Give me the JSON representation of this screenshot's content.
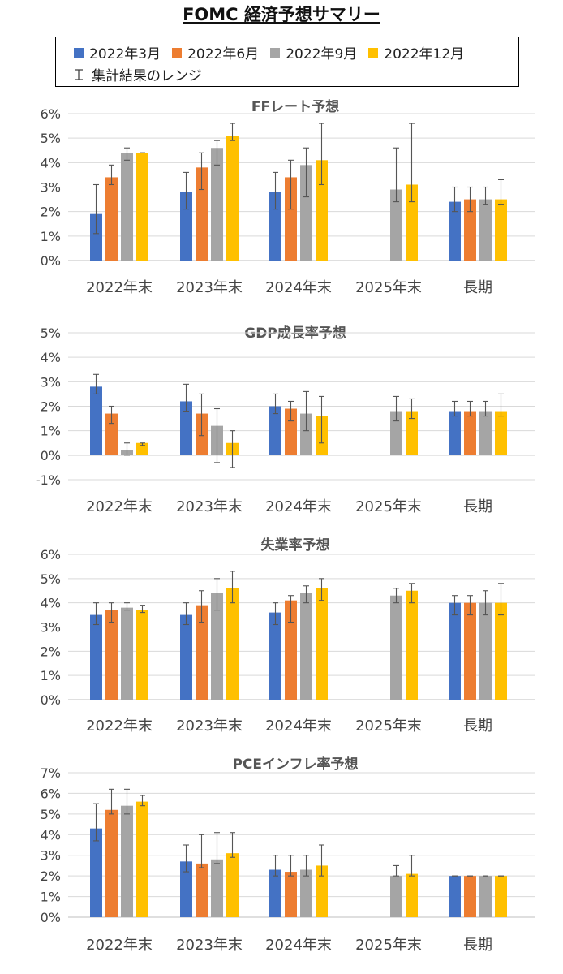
{
  "title": "FOMC 経済予想サマリー",
  "legend": {
    "series": [
      {
        "name": "2022年3月",
        "color": "#4472C4"
      },
      {
        "name": "2022年6月",
        "color": "#ED7D31"
      },
      {
        "name": "2022年9月",
        "color": "#A5A5A5"
      },
      {
        "name": "2022年12月",
        "color": "#FFC000"
      }
    ],
    "range_label": "集計結果のレンジ"
  },
  "chart_data": [
    {
      "type": "bar",
      "title": "FFレート予想",
      "categories": [
        "2022年末",
        "2023年末",
        "2024年末",
        "2025年末",
        "長期"
      ],
      "ylim": [
        0,
        6
      ],
      "yticks": [
        0,
        1,
        2,
        3,
        4,
        5,
        6
      ],
      "tick_suffix": "%",
      "series": [
        {
          "name": "2022年3月",
          "values": [
            1.9,
            2.8,
            2.8,
            null,
            2.4
          ],
          "low": [
            1.1,
            2.1,
            2.1,
            null,
            2.0
          ],
          "high": [
            3.1,
            3.6,
            3.6,
            null,
            3.0
          ]
        },
        {
          "name": "2022年6月",
          "values": [
            3.4,
            3.8,
            3.4,
            null,
            2.5
          ],
          "low": [
            3.1,
            2.9,
            2.1,
            null,
            2.0
          ],
          "high": [
            3.9,
            4.4,
            4.1,
            null,
            3.0
          ]
        },
        {
          "name": "2022年9月",
          "values": [
            4.4,
            4.6,
            3.9,
            2.9,
            2.5
          ],
          "low": [
            4.1,
            3.9,
            2.6,
            2.4,
            2.3
          ],
          "high": [
            4.6,
            4.9,
            4.6,
            4.6,
            3.0
          ]
        },
        {
          "name": "2022年12月",
          "values": [
            4.4,
            5.1,
            4.1,
            3.1,
            2.5
          ],
          "low": [
            4.4,
            4.9,
            3.1,
            2.4,
            2.3
          ],
          "high": [
            4.4,
            5.6,
            5.6,
            5.6,
            3.3
          ]
        }
      ]
    },
    {
      "type": "bar",
      "title": "GDP成長率予想",
      "categories": [
        "2022年末",
        "2023年末",
        "2024年末",
        "2025年末",
        "長期"
      ],
      "ylim": [
        -1,
        5
      ],
      "yticks": [
        -1,
        0,
        1,
        2,
        3,
        4,
        5
      ],
      "tick_suffix": "%",
      "series": [
        {
          "name": "2022年3月",
          "values": [
            2.8,
            2.2,
            2.0,
            null,
            1.8
          ],
          "low": [
            2.5,
            1.8,
            1.7,
            null,
            1.6
          ],
          "high": [
            3.3,
            2.9,
            2.5,
            null,
            2.2
          ]
        },
        {
          "name": "2022年6月",
          "values": [
            1.7,
            1.7,
            1.9,
            null,
            1.8
          ],
          "low": [
            1.3,
            0.8,
            1.4,
            null,
            1.6
          ],
          "high": [
            2.0,
            2.5,
            2.2,
            null,
            2.2
          ]
        },
        {
          "name": "2022年9月",
          "values": [
            0.2,
            1.2,
            1.7,
            1.8,
            1.8
          ],
          "low": [
            0.0,
            -0.3,
            1.0,
            1.4,
            1.6
          ],
          "high": [
            0.5,
            1.9,
            2.6,
            2.4,
            2.2
          ]
        },
        {
          "name": "2022年12月",
          "values": [
            0.5,
            0.5,
            1.6,
            1.8,
            1.8
          ],
          "low": [
            0.4,
            -0.5,
            0.5,
            1.5,
            1.6
          ],
          "high": [
            0.5,
            1.0,
            2.4,
            2.3,
            2.5
          ]
        }
      ]
    },
    {
      "type": "bar",
      "title": "失業率予想",
      "categories": [
        "2022年末",
        "2023年末",
        "2024年末",
        "2025年末",
        "長期"
      ],
      "ylim": [
        0,
        6
      ],
      "yticks": [
        0,
        1,
        2,
        3,
        4,
        5,
        6
      ],
      "tick_suffix": "%",
      "series": [
        {
          "name": "2022年3月",
          "values": [
            3.5,
            3.5,
            3.6,
            null,
            4.0
          ],
          "low": [
            3.1,
            3.1,
            3.1,
            null,
            3.5
          ],
          "high": [
            4.0,
            4.0,
            4.0,
            null,
            4.3
          ]
        },
        {
          "name": "2022年6月",
          "values": [
            3.7,
            3.9,
            4.1,
            null,
            4.0
          ],
          "low": [
            3.2,
            3.2,
            3.2,
            null,
            3.5
          ],
          "high": [
            4.0,
            4.5,
            4.3,
            null,
            4.3
          ]
        },
        {
          "name": "2022年9月",
          "values": [
            3.8,
            4.4,
            4.4,
            4.3,
            4.0
          ],
          "low": [
            3.7,
            3.7,
            4.0,
            4.0,
            3.5
          ],
          "high": [
            4.0,
            5.0,
            4.7,
            4.6,
            4.5
          ]
        },
        {
          "name": "2022年12月",
          "values": [
            3.7,
            4.6,
            4.6,
            4.5,
            4.0
          ],
          "low": [
            3.6,
            4.0,
            4.1,
            4.0,
            3.5
          ],
          "high": [
            3.9,
            5.3,
            5.0,
            4.8,
            4.8
          ]
        }
      ]
    },
    {
      "type": "bar",
      "title": "PCEインフレ率予想",
      "categories": [
        "2022年末",
        "2023年末",
        "2024年末",
        "2025年末",
        "長期"
      ],
      "ylim": [
        0,
        7
      ],
      "yticks": [
        0,
        1,
        2,
        3,
        4,
        5,
        6,
        7
      ],
      "tick_suffix": "%",
      "series": [
        {
          "name": "2022年3月",
          "values": [
            4.3,
            2.7,
            2.3,
            null,
            2.0
          ],
          "low": [
            3.7,
            2.2,
            2.0,
            null,
            2.0
          ],
          "high": [
            5.5,
            3.5,
            3.0,
            null,
            2.0
          ]
        },
        {
          "name": "2022年6月",
          "values": [
            5.2,
            2.6,
            2.2,
            null,
            2.0
          ],
          "low": [
            5.0,
            2.4,
            2.0,
            null,
            2.0
          ],
          "high": [
            6.2,
            4.0,
            3.0,
            null,
            2.0
          ]
        },
        {
          "name": "2022年9月",
          "values": [
            5.4,
            2.8,
            2.3,
            2.0,
            2.0
          ],
          "low": [
            5.0,
            2.6,
            2.0,
            2.0,
            2.0
          ],
          "high": [
            6.2,
            4.1,
            3.0,
            2.5,
            2.0
          ]
        },
        {
          "name": "2022年12月",
          "values": [
            5.6,
            3.1,
            2.5,
            2.1,
            2.0
          ],
          "low": [
            5.4,
            2.9,
            2.0,
            2.0,
            2.0
          ],
          "high": [
            5.9,
            4.1,
            3.5,
            3.0,
            2.0
          ]
        }
      ]
    }
  ]
}
